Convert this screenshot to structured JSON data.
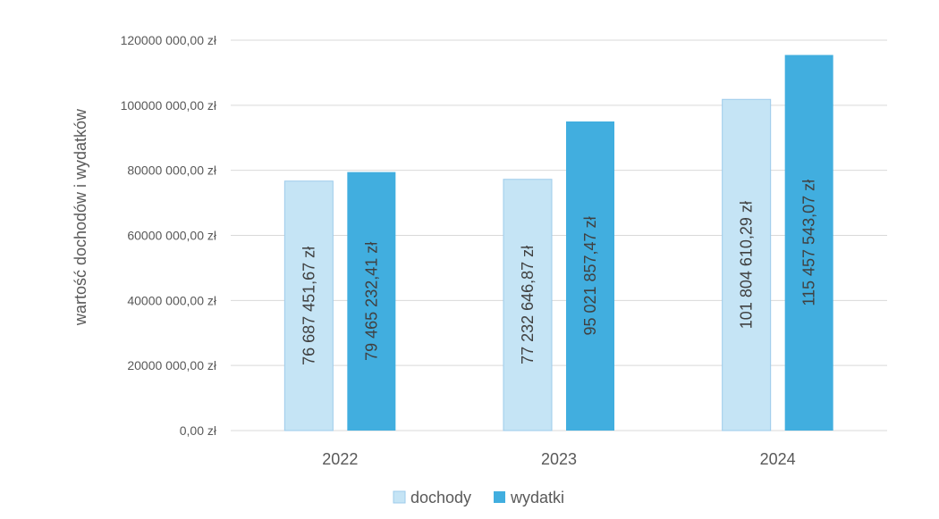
{
  "chart_data": {
    "type": "bar",
    "title": "",
    "xlabel": "",
    "ylabel": "wartość dochodów i wydatków",
    "categories": [
      "2022",
      "2023",
      "2024"
    ],
    "series": [
      {
        "name": "dochody",
        "color": "#C5E4F5",
        "values": [
          76687451.67,
          77232646.87,
          101804610.29
        ],
        "labels": [
          "76 687 451,67 zł",
          "77 232 646,87 zł",
          "101 804 610,29 zł"
        ]
      },
      {
        "name": "wydatki",
        "color": "#41AEDF",
        "values": [
          79465232.41,
          95021857.47,
          115457543.07
        ],
        "labels": [
          "79 465 232,41 zł",
          "95 021 857,47 zł",
          "115 457 543,07 zł"
        ]
      }
    ],
    "ylim": [
      0,
      120000000
    ],
    "yticks": [
      0,
      20000000,
      40000000,
      60000000,
      80000000,
      100000000,
      120000000
    ],
    "ytick_labels": [
      "0,00 zł",
      "20000 000,00 zł",
      "40000 000,00 zł",
      "60000 000,00 zł",
      "80000 000,00 zł",
      "100000 000,00 zł",
      "120000 000,00 zł"
    ],
    "grid": true,
    "legend_position": "bottom-center",
    "colors": {
      "grid": "#D9D9D9",
      "bar_border_light": "#9DCBEB"
    }
  }
}
